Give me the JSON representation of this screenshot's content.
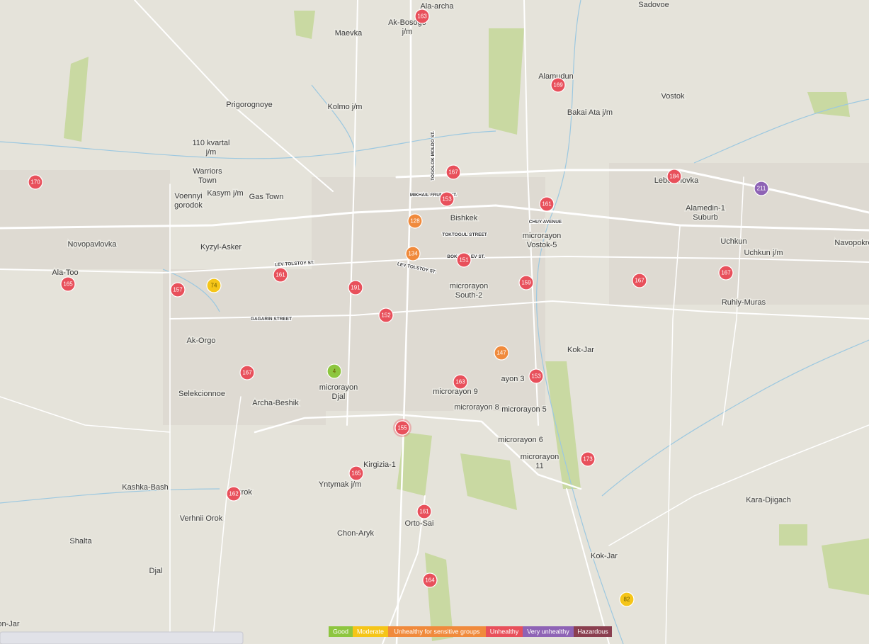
{
  "places": [
    "Ala-archa",
    "Ak-Bosogo j/m",
    "Maevka",
    "Sadovoe",
    "Alamudun",
    "Vostok",
    "Bakai Ata j/m",
    "Prigorognoye",
    "Kolmo j/m",
    "110 kvartal j/m",
    "Warriors Town",
    "Kasym j/m",
    "Gas Town",
    "Voennyi gorodok",
    "Lebedinovka",
    "Alamedin-1 Suburb",
    "Bishkek",
    "Novopavlovka",
    "Kyzyl-Asker",
    "Ala-Too",
    "microrayon Vostok-5",
    "Uchkun",
    "Uchkun j/m",
    "Navopokro",
    "microrayon South-2",
    "Ruhiy-Muras",
    "Ak-Orgo",
    "Kok-Jar",
    "microrayon Djal",
    "Selekcionnoe",
    "Archa-Beshik",
    "microrayon 9",
    "microrayon 8",
    "microrayon 5",
    "ayon 3",
    "microrayon 6",
    "microrayon 11",
    "Kirgizia-1",
    "Yntymak j/m",
    "Kashka-Bash",
    "Orok",
    "Verhnii Orok",
    "Shalta",
    "Chon-Aryk",
    "Orto-Sai",
    "Djal",
    "Kok-Jar",
    "Kara-Djigach",
    "on-Jar"
  ],
  "streets": [
    "TOGOLOK MOLDO ST.",
    "MIKHAIL FRUNZE ST.",
    "TOKTOGUL STREET",
    "CHUY AVENUE",
    "BOKONBAEV ST.",
    "LEV TOLSTOY ST.",
    "LEV TOLSTOY ST.",
    "GAGARIN STREET"
  ],
  "aqi": [
    163,
    169,
    167,
    184,
    153,
    211,
    161,
    170,
    128,
    134,
    151,
    161,
    165,
    157,
    74,
    191,
    159,
    167,
    167,
    152,
    147,
    4,
    167,
    163,
    153,
    155,
    173,
    165,
    162,
    161,
    164,
    82
  ],
  "legend": [
    {
      "label": "Good",
      "color": "#8dc63f"
    },
    {
      "label": "Moderate",
      "color": "#f5c518"
    },
    {
      "label": "Unhealthy for sensitive groups",
      "color": "#f08a3c"
    },
    {
      "label": "Unhealthy",
      "color": "#e8505b"
    },
    {
      "label": "Very unhealthy",
      "color": "#8e63b5"
    },
    {
      "label": "Hazardous",
      "color": "#8a3f4f"
    }
  ]
}
